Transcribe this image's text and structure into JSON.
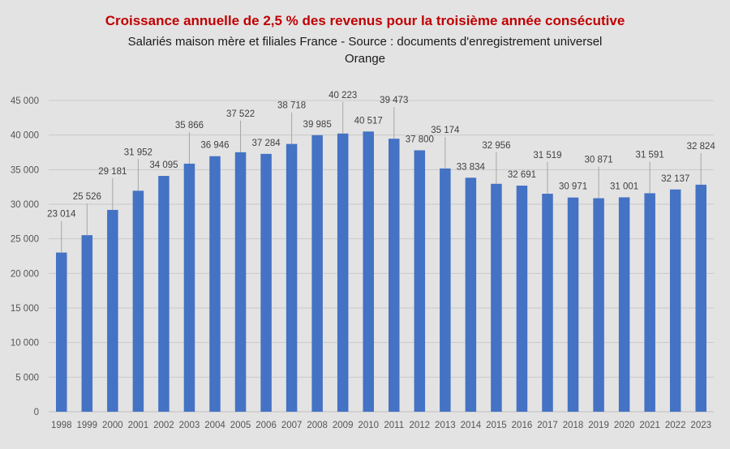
{
  "title": "Croissance annuelle de 2,5 % des revenus pour la troisième année consécutive",
  "subtitle_line1": "Salariés maison mère et filiales France - Source : documents d'enregistrement universel",
  "subtitle_line2": "Orange",
  "colors": {
    "bar": "#4472c4",
    "title": "#c00000",
    "grid": "#c9c9c9",
    "background": "#e3e3e3"
  },
  "chart_data": {
    "type": "bar",
    "title": "Croissance annuelle de 2,5 % des revenus pour la troisième année consécutive",
    "subtitle": "Salariés maison mère et filiales France - Source : documents d'enregistrement universel Orange",
    "xlabel": "",
    "ylabel": "",
    "ylim": [
      0,
      45000
    ],
    "yticks": [
      0,
      5000,
      10000,
      15000,
      20000,
      25000,
      30000,
      35000,
      40000,
      45000
    ],
    "ytick_labels": [
      "0",
      "5 000",
      "10 000",
      "15 000",
      "20 000",
      "25 000",
      "30 000",
      "35 000",
      "40 000",
      "45 000"
    ],
    "grid": true,
    "categories": [
      "1998",
      "1999",
      "2000",
      "2001",
      "2002",
      "2003",
      "2004",
      "2005",
      "2006",
      "2007",
      "2008",
      "2009",
      "2010",
      "2011",
      "2012",
      "2013",
      "2014",
      "2015",
      "2016",
      "2017",
      "2018",
      "2019",
      "2020",
      "2021",
      "2022",
      "2023"
    ],
    "values": [
      23014,
      25526,
      29181,
      31952,
      34095,
      35866,
      36946,
      37522,
      37284,
      38718,
      39985,
      40223,
      40517,
      39473,
      37800,
      35174,
      33834,
      32956,
      32691,
      31519,
      30971,
      30871,
      31001,
      31591,
      32137,
      32824
    ],
    "data_labels": [
      "23 014",
      "25 526",
      "29 181",
      "31 952",
      "34 095",
      "35 866",
      "36 946",
      "37 522",
      "37 284",
      "38 718",
      "39 985",
      "40 223",
      "40 517",
      "39 473",
      "37 800",
      "35 174",
      "33 834",
      "32 956",
      "32 691",
      "31 519",
      "30 971",
      "30 871",
      "31 001",
      "31 591",
      "32 137",
      "32 824"
    ]
  }
}
